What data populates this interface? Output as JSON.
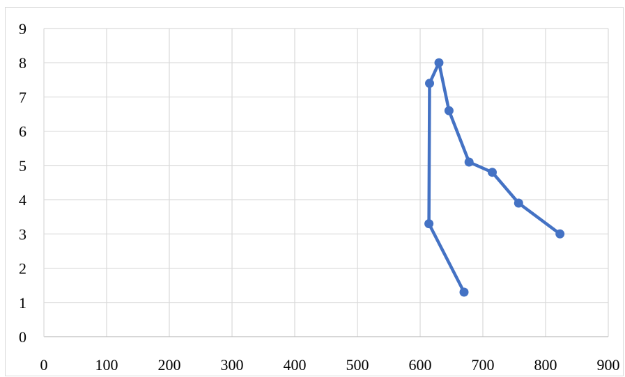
{
  "chart_data": {
    "type": "scatter",
    "mode": "lines+markers",
    "title": "",
    "xlabel": "",
    "ylabel": "",
    "xlim": [
      0,
      900
    ],
    "ylim": [
      0,
      9
    ],
    "x_ticks": [
      "0",
      "100",
      "200",
      "300",
      "400",
      "500",
      "600",
      "700",
      "800",
      "900"
    ],
    "y_ticks": [
      "0",
      "1",
      "2",
      "3",
      "4",
      "5",
      "6",
      "7",
      "8",
      "9"
    ],
    "grid": true,
    "legend": "none",
    "series": [
      {
        "color": "#4472C4",
        "points": [
          {
            "x": 823,
            "y": 3.0
          },
          {
            "x": 757,
            "y": 3.9
          },
          {
            "x": 715,
            "y": 4.8
          },
          {
            "x": 678,
            "y": 5.1
          },
          {
            "x": 646,
            "y": 6.6
          },
          {
            "x": 630,
            "y": 8.0
          },
          {
            "x": 615,
            "y": 7.4
          },
          {
            "x": 614,
            "y": 3.3
          },
          {
            "x": 670,
            "y": 1.3
          }
        ]
      }
    ]
  }
}
